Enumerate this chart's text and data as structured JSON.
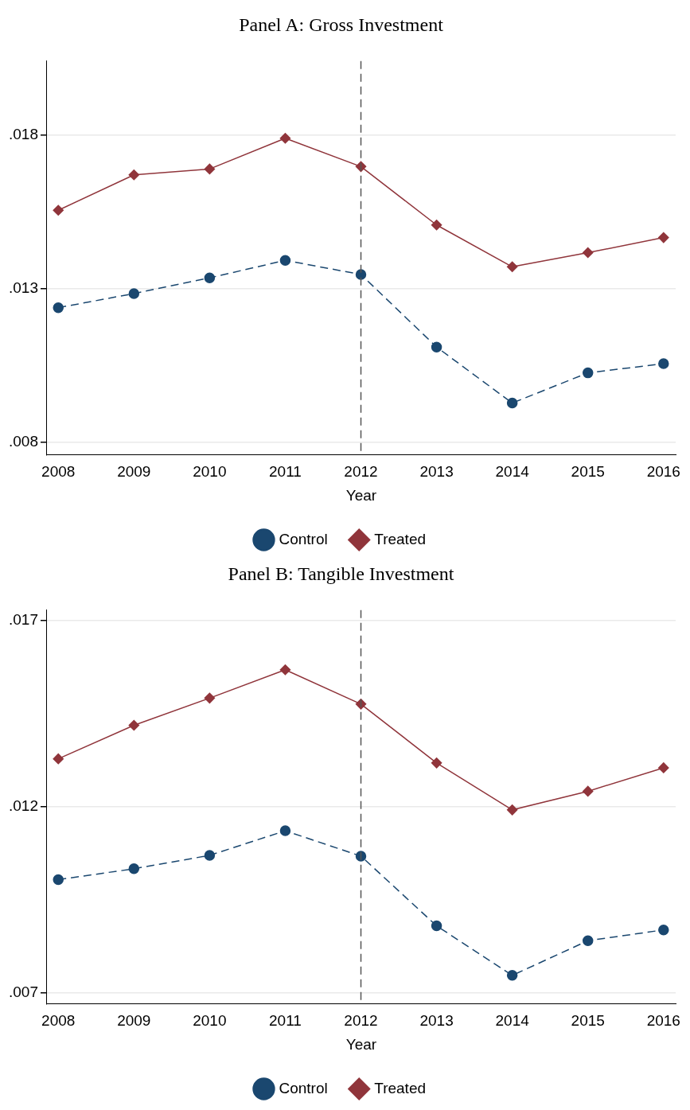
{
  "chart_data": [
    {
      "type": "line",
      "title": "Panel A: Gross Investment",
      "xlabel": "Year",
      "x": [
        2008,
        2009,
        2010,
        2011,
        2012,
        2013,
        2014,
        2015,
        2016
      ],
      "series": [
        {
          "name": "Control",
          "color": "#1a476f",
          "marker": "circle",
          "line_style": "dashed",
          "values": [
            0.01238,
            0.01284,
            0.01335,
            0.01392,
            0.01346,
            0.0111,
            0.00928,
            0.01026,
            0.01056
          ]
        },
        {
          "name": "Treated",
          "color": "#90353b",
          "marker": "diamond",
          "line_style": "solid",
          "values": [
            0.01555,
            0.0167,
            0.01689,
            0.01789,
            0.01697,
            0.01507,
            0.01371,
            0.01417,
            0.01466
          ]
        }
      ],
      "xlim": [
        2007.85,
        2016.16
      ],
      "xticks": [
        2008,
        2009,
        2010,
        2011,
        2012,
        2013,
        2014,
        2015,
        2016
      ],
      "ylim": [
        0.0076,
        0.0204
      ],
      "yticks": [
        {
          "value": 0.008,
          "label": ".008"
        },
        {
          "value": 0.013,
          "label": ".013"
        },
        {
          "value": 0.018,
          "label": ".018"
        }
      ],
      "ref_lines": [
        {
          "axis": "x",
          "value": 2012,
          "color": "#555555",
          "line_style": "dashed"
        }
      ],
      "grid": "y",
      "legend": "bottom"
    },
    {
      "type": "line",
      "title": "Panel B: Tangible Investment",
      "xlabel": "Year",
      "x": [
        2008,
        2009,
        2010,
        2011,
        2012,
        2013,
        2014,
        2015,
        2016
      ],
      "series": [
        {
          "name": "Control",
          "color": "#1a476f",
          "marker": "circle",
          "line_style": "dashed",
          "values": [
            0.01004,
            0.01033,
            0.01069,
            0.01135,
            0.01067,
            0.0088,
            0.00747,
            0.0084,
            0.00869
          ]
        },
        {
          "name": "Treated",
          "color": "#90353b",
          "marker": "diamond",
          "line_style": "solid",
          "values": [
            0.01328,
            0.01418,
            0.01491,
            0.01567,
            0.01475,
            0.01317,
            0.01191,
            0.01241,
            0.01304
          ]
        }
      ],
      "xlim": [
        2007.85,
        2016.16
      ],
      "xticks": [
        2008,
        2009,
        2010,
        2011,
        2012,
        2013,
        2014,
        2015,
        2016
      ],
      "ylim": [
        0.00671,
        0.01727
      ],
      "yticks": [
        {
          "value": 0.007,
          "label": ".007"
        },
        {
          "value": 0.012,
          "label": ".012"
        },
        {
          "value": 0.017,
          "label": ".017"
        }
      ],
      "ref_lines": [
        {
          "axis": "x",
          "value": 2012,
          "color": "#555555",
          "line_style": "dashed"
        }
      ],
      "grid": "y",
      "legend": "bottom"
    }
  ]
}
